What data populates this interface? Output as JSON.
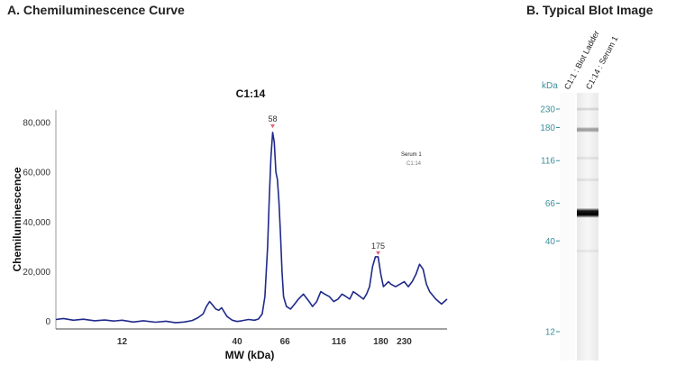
{
  "panel_a_title": "A. Chemiluminescence Curve",
  "panel_b_title": "B.  Typical Blot Image",
  "chart_data": [
    {
      "type": "line",
      "title": "C1:14",
      "xlabel": "MW (kDa)",
      "ylabel": "Chemiluminescence",
      "x_scale": "log",
      "xlim": [
        6,
        360
      ],
      "ylim": [
        -3000,
        85000
      ],
      "x_ticks": [
        12,
        40,
        66,
        116,
        180,
        230
      ],
      "y_ticks": [
        0,
        20000,
        40000,
        60000,
        80000
      ],
      "y_tick_labels": [
        "0",
        "20,000",
        "40,000",
        "60,000",
        "80,000"
      ],
      "legend": {
        "title": "Serum 1",
        "entry": "C1:14",
        "position": "top-right"
      },
      "peak_labels": [
        {
          "label": "58",
          "x": 58,
          "y": 77000
        },
        {
          "label": "175",
          "x": 175,
          "y": 26000
        }
      ],
      "series": [
        {
          "line_color": "#1f2a8a",
          "x": [
            6.0,
            6.5,
            7.2,
            8.0,
            9.0,
            10.0,
            11.0,
            12.0,
            13.5,
            15.0,
            17.0,
            19.0,
            21.0,
            23.0,
            25.0,
            26.5,
            28.0,
            29.0,
            30.0,
            31.0,
            32.0,
            33.0,
            34.0,
            36.0,
            38.0,
            40.0,
            42.0,
            45.0,
            48.0,
            50.0,
            52.0,
            53.5,
            55.0,
            56.0,
            57.0,
            58.0,
            59.0,
            60.0,
            61.0,
            62.0,
            63.0,
            64.0,
            65.0,
            67.0,
            70.0,
            73.0,
            76.0,
            80.0,
            85.0,
            88.0,
            92.0,
            96.0,
            100.0,
            105.0,
            110.0,
            115.0,
            120.0,
            125.0,
            130.0,
            135.0,
            140.0,
            145.0,
            150.0,
            155.0,
            160.0,
            165.0,
            170.0,
            175.0,
            180.0,
            185.0,
            190.0,
            195.0,
            200.0,
            210.0,
            220.0,
            230.0,
            240.0,
            250.0,
            260.0,
            270.0,
            280.0,
            290.0,
            300.0,
            320.0,
            340.0,
            360.0
          ],
          "y": [
            800,
            1200,
            500,
            900,
            300,
            600,
            200,
            500,
            -200,
            300,
            -300,
            100,
            -500,
            -200,
            400,
            1500,
            3000,
            6000,
            8000,
            6500,
            5000,
            4500,
            5500,
            2000,
            500,
            0,
            300,
            800,
            500,
            1000,
            3000,
            10000,
            30000,
            50000,
            66000,
            76000,
            72000,
            60000,
            57000,
            48000,
            35000,
            20000,
            10000,
            6000,
            5000,
            7000,
            9000,
            11000,
            8000,
            6000,
            8000,
            12000,
            11000,
            10000,
            8000,
            9000,
            11000,
            10000,
            9000,
            12000,
            11000,
            10000,
            9000,
            11000,
            14000,
            22000,
            26000,
            26000,
            19000,
            14000,
            15000,
            16000,
            15000,
            14000,
            15000,
            16000,
            14000,
            16000,
            19000,
            23000,
            21000,
            15000,
            12000,
            9000,
            7000,
            9000
          ]
        }
      ]
    }
  ],
  "blot": {
    "kda_label": "kDa",
    "lane_labels": [
      "C1:1 : Biot Ladder",
      "C1:14 : Serum 1"
    ],
    "markers": [
      {
        "label": "230",
        "kda": 230
      },
      {
        "label": "180",
        "kda": 180
      },
      {
        "label": "116",
        "kda": 116
      },
      {
        "label": "66",
        "kda": 66
      },
      {
        "label": "40",
        "kda": 40
      },
      {
        "label": "12",
        "kda": 12
      }
    ]
  }
}
